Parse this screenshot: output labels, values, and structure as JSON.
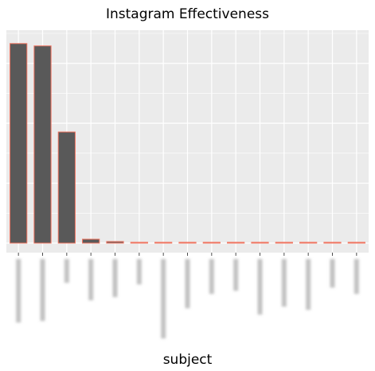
{
  "chart_data": {
    "type": "bar",
    "title": "Instagram Effectiveness",
    "xlabel": "subject",
    "ylabel": "",
    "categories": [
      "obscured-1",
      "obscured-2",
      "obscured-3",
      "obscured-4",
      "obscured-5",
      "obscured-6",
      "obscured-7",
      "obscured-8",
      "obscured-9",
      "obscured-10",
      "obscured-11",
      "obscured-12",
      "obscured-13",
      "obscured-14",
      "obscured-15"
    ],
    "values": [
      255,
      252,
      142,
      5,
      2,
      1,
      1,
      1,
      1,
      1,
      1,
      1,
      1,
      0.3,
      0.3
    ],
    "ylim": [
      0,
      268
    ],
    "grid": true,
    "x_tick_labels_obscured": true,
    "colors": {
      "panel": "#ebebeb",
      "gridline": "#ffffff",
      "bar_fill": "#595959",
      "bar_outline": "#f0735f"
    }
  }
}
